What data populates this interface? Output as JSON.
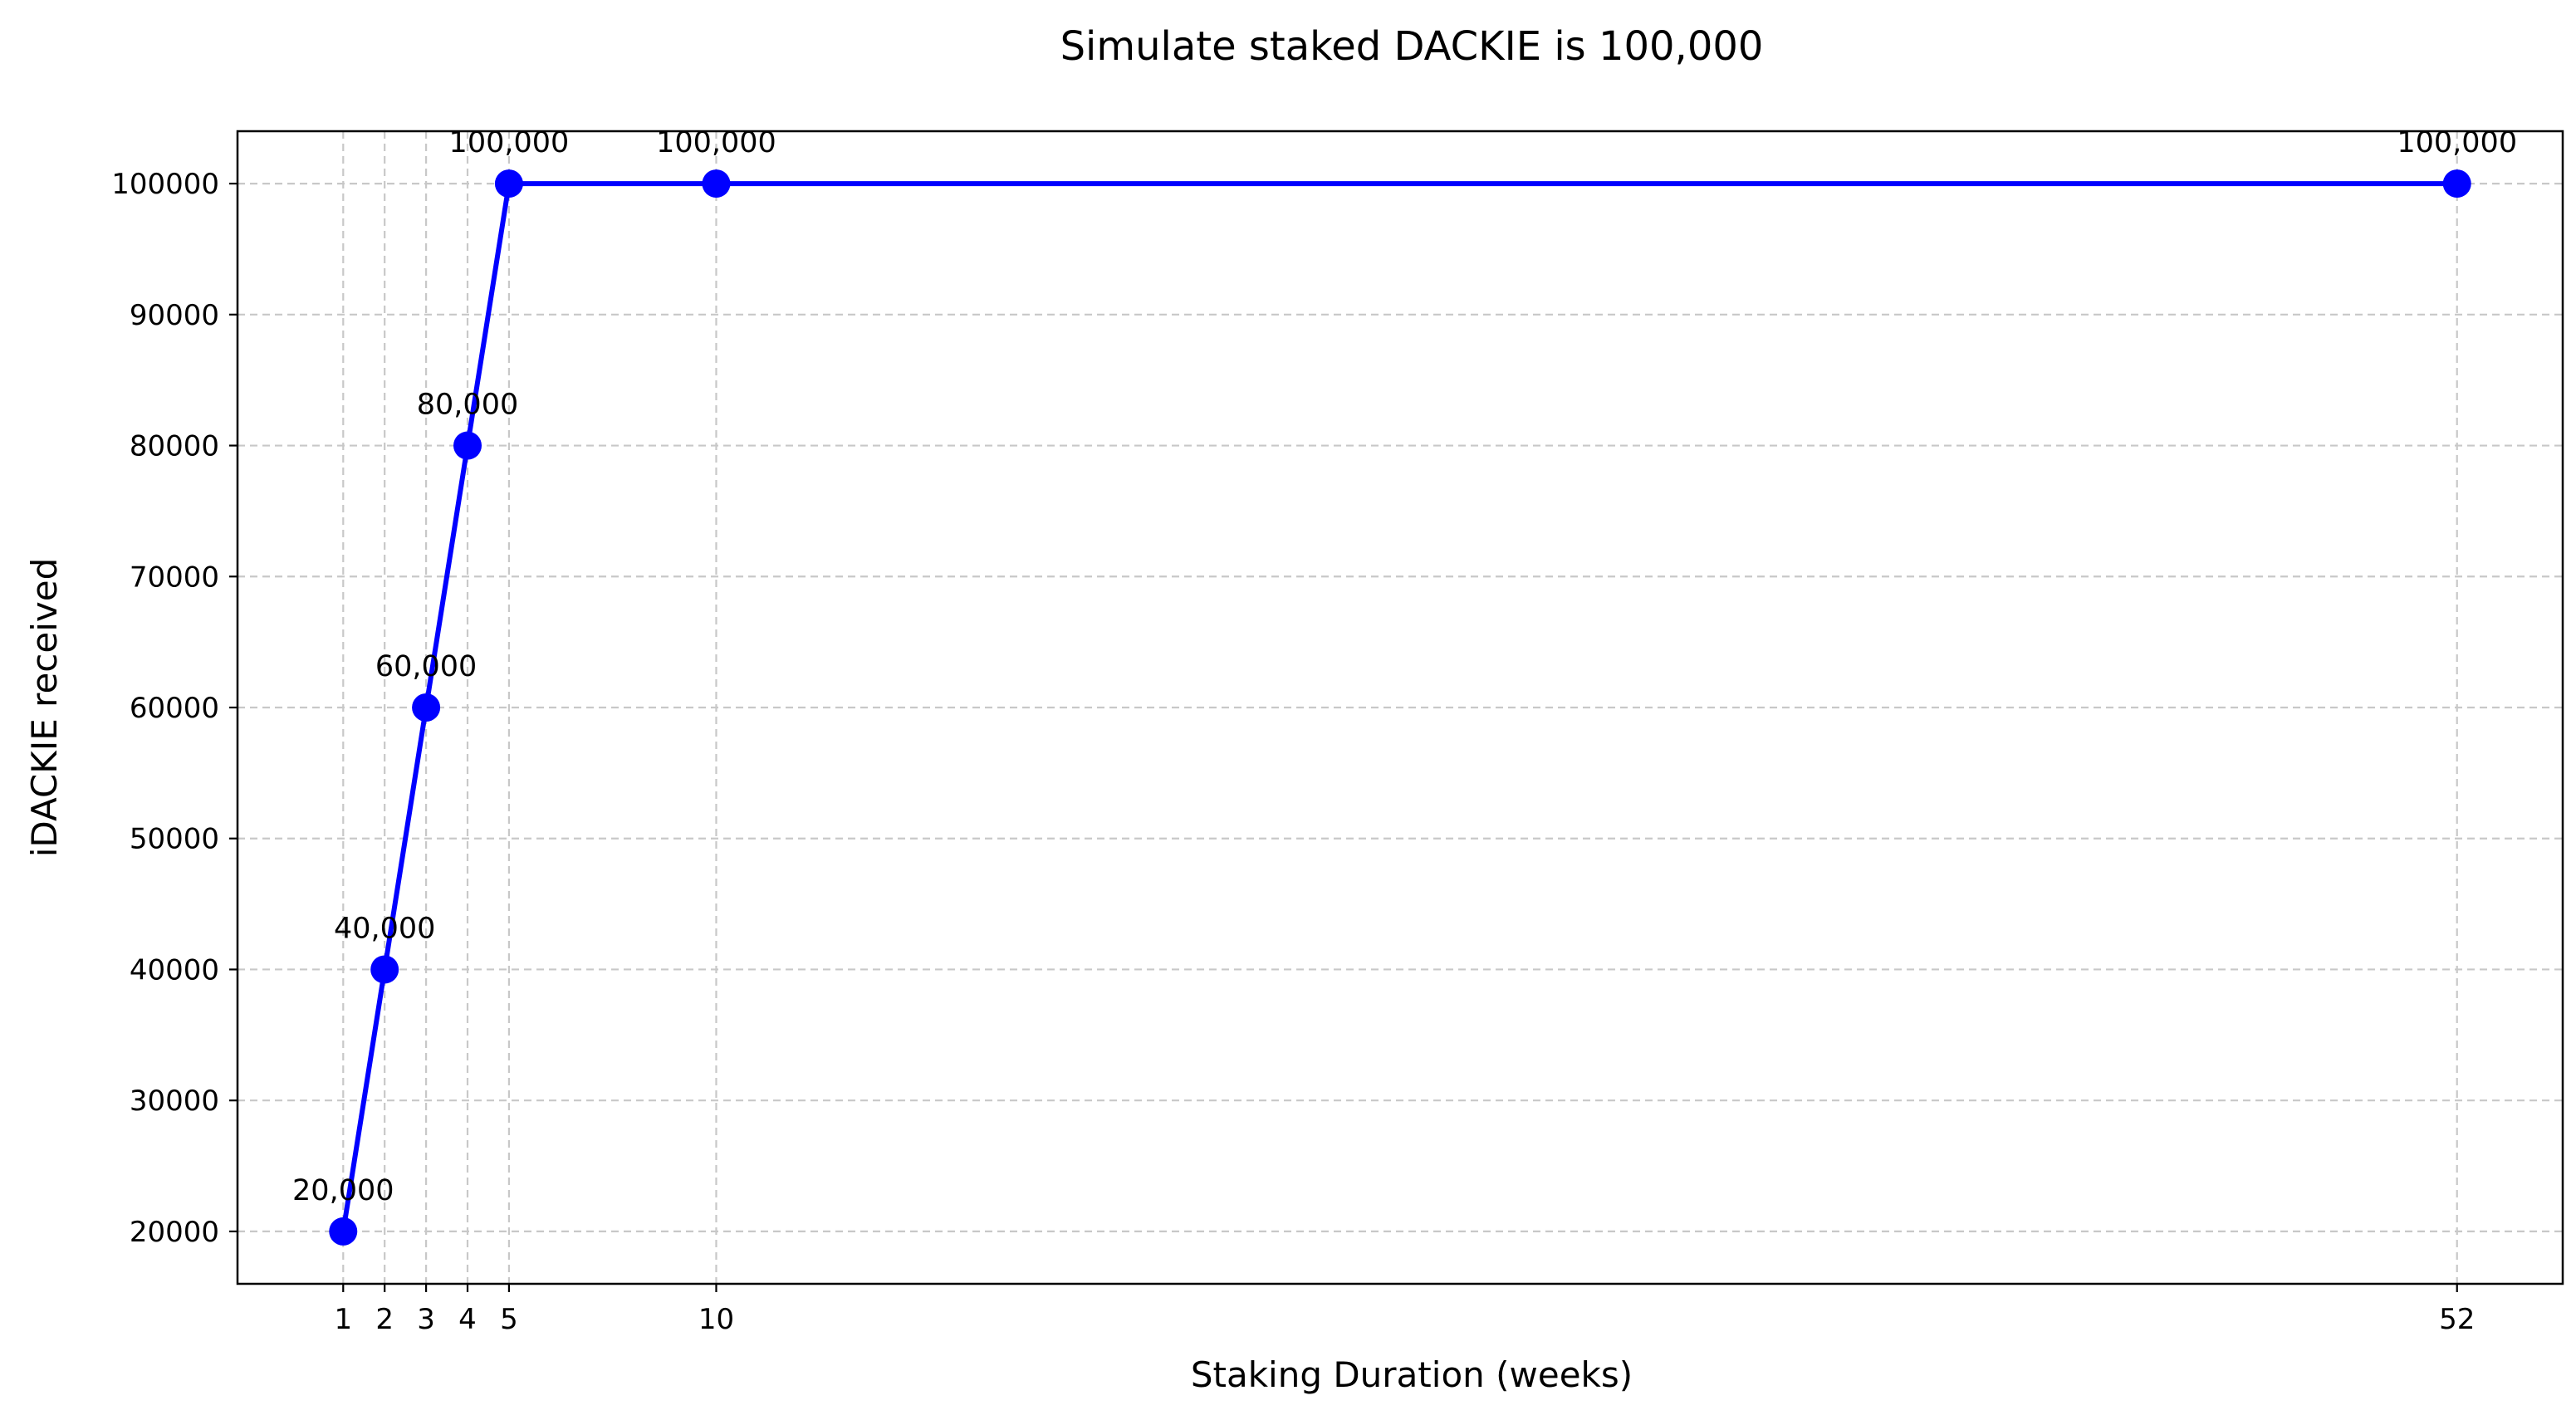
{
  "chart_data": {
    "type": "line",
    "title": "Simulate staked DACKIE is 100,000",
    "xlabel": "Staking Duration (weeks)",
    "ylabel": "iDACKIE received",
    "x": [
      1,
      2,
      3,
      4,
      5,
      10,
      52
    ],
    "y": [
      20000,
      40000,
      60000,
      80000,
      100000,
      100000,
      100000
    ],
    "data_labels": [
      "20,000",
      "40,000",
      "60,000",
      "80,000",
      "100,000",
      "100,000",
      "100,000"
    ],
    "xticks": [
      1,
      2,
      3,
      4,
      5,
      10,
      52
    ],
    "xtick_labels": [
      "1",
      "2",
      "3",
      "4",
      "5",
      "10",
      "52"
    ],
    "yticks": [
      20000,
      30000,
      40000,
      50000,
      60000,
      70000,
      80000,
      90000,
      100000
    ],
    "ytick_labels": [
      "20000",
      "30000",
      "40000",
      "50000",
      "60000",
      "70000",
      "80000",
      "90000",
      "100000"
    ],
    "xlim": [
      -1.55,
      54.55
    ],
    "ylim": [
      16000,
      104000
    ],
    "grid": true,
    "line_color": "#0000ff",
    "marker_color": "#0000ff",
    "grid_color": "#c8c8c8"
  }
}
